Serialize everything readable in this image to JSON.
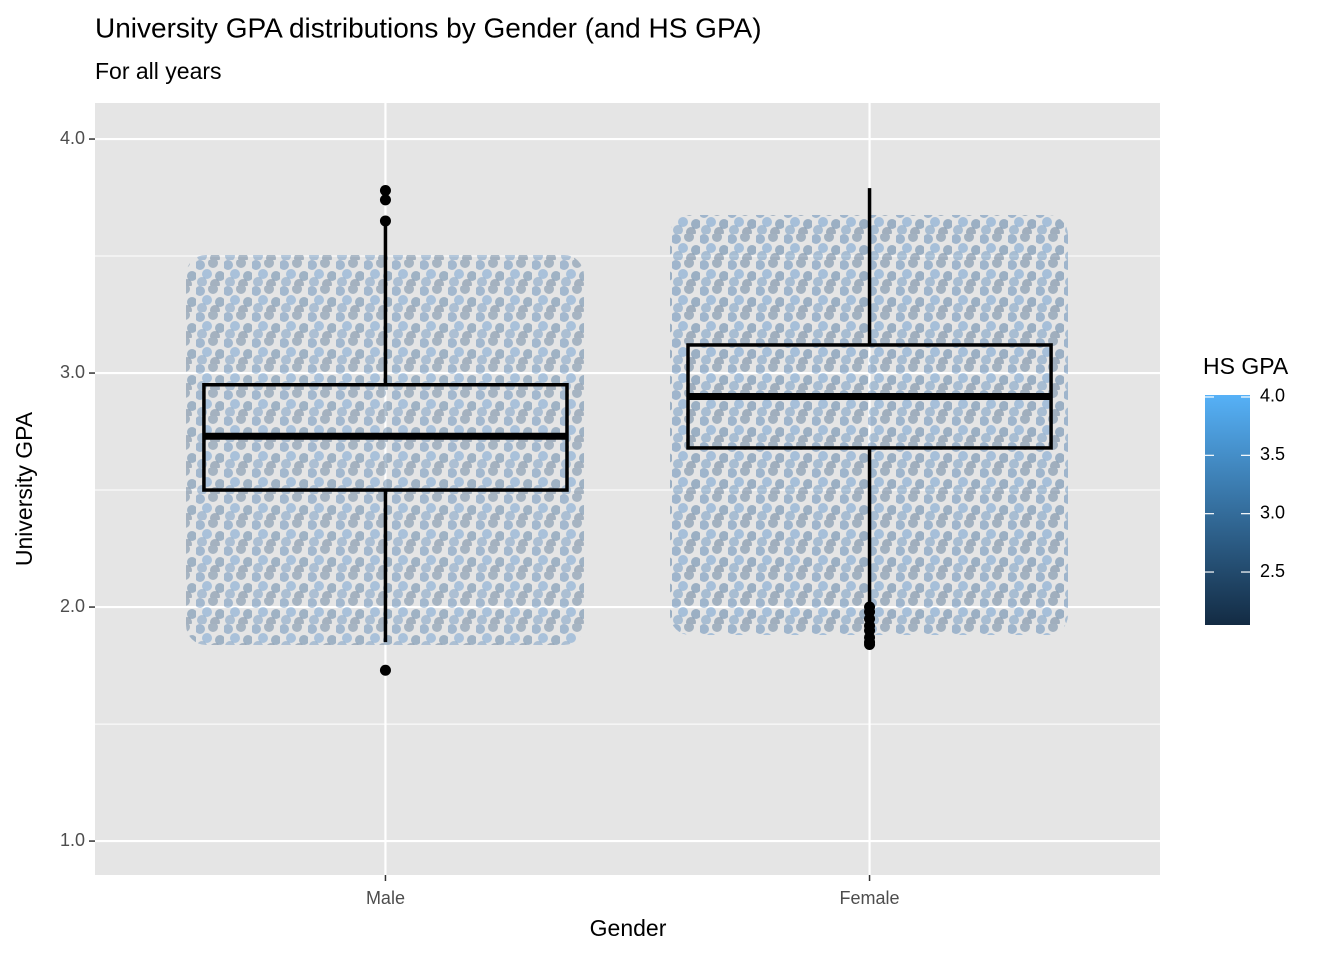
{
  "chart_data": {
    "type": "box",
    "title": "University GPA distributions by Gender (and HS GPA)",
    "subtitle": "For all years",
    "x_label": "Gender",
    "y_label": "University GPA",
    "categories": [
      "Male",
      "Female"
    ],
    "boxes": [
      {
        "low": 1.85,
        "q1": 2.5,
        "median": 2.73,
        "q3": 2.95,
        "high": 3.63,
        "outliers": [
          3.65,
          3.74,
          3.78,
          1.73
        ]
      },
      {
        "low": 2.01,
        "q1": 2.68,
        "median": 2.9,
        "q3": 3.12,
        "high": 3.79,
        "outliers": [
          2.0,
          1.98,
          1.95,
          1.92,
          1.9,
          1.87,
          1.85,
          1.84
        ]
      }
    ],
    "ylim": [
      0.855,
      4.154
    ],
    "yticks": [
      {
        "value": 1,
        "label": "1.0"
      },
      {
        "value": 2,
        "label": "2.0"
      },
      {
        "value": 3,
        "label": "3.0"
      },
      {
        "value": 4,
        "label": "4.0"
      }
    ],
    "grid": true,
    "colorbar": {
      "title": "HS GPA",
      "lim": [
        2.046,
        4.017
      ],
      "low": "#132b43",
      "high": "#56b1f7",
      "ticks": [
        {
          "value": 2.5,
          "label": "2.5"
        },
        {
          "value": 3,
          "label": "3.0"
        },
        {
          "value": 3.5,
          "label": "3.5"
        },
        {
          "value": 4,
          "label": "4.0"
        }
      ]
    }
  }
}
